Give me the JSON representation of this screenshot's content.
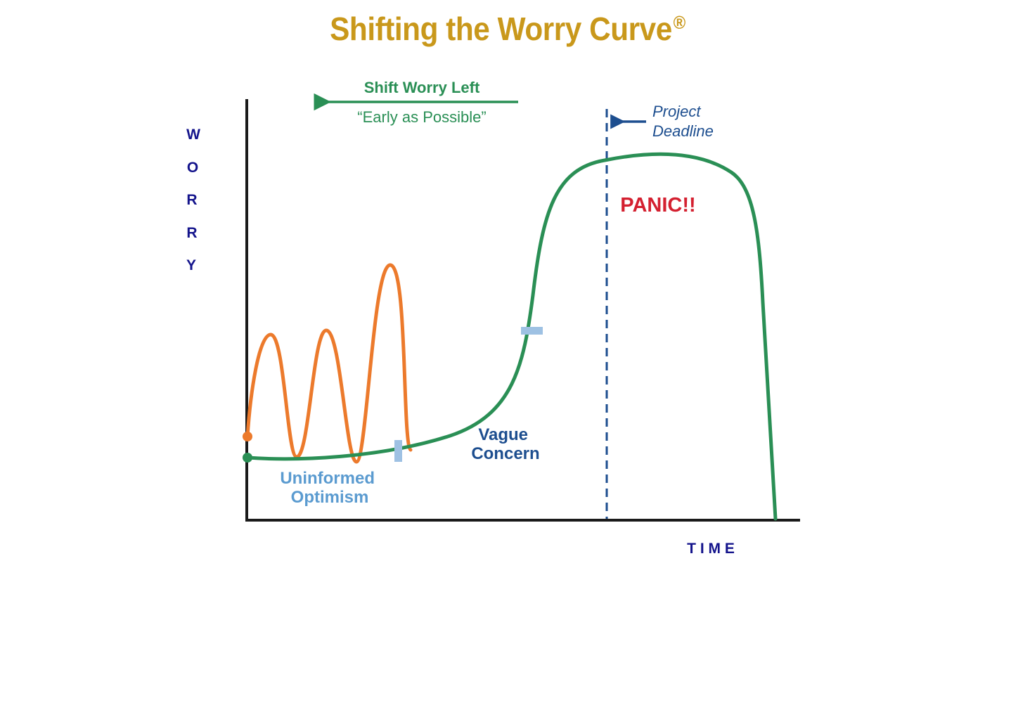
{
  "title": {
    "text": "Shifting the Worry Curve",
    "mark": "®",
    "color": "#c9981b"
  },
  "axes": {
    "y_label_letters": [
      "W",
      "O",
      "R",
      "R",
      "Y"
    ],
    "x_label": "T I M E",
    "label_color": "#14148c",
    "axis_color": "#1a1a1a"
  },
  "shift": {
    "title": "Shift Worry Left",
    "subtitle": "“Early as Possible”",
    "color": "#2a8f55"
  },
  "deadline": {
    "line1": "Project",
    "line2": "Deadline",
    "color": "#1d4e8f"
  },
  "labels": {
    "panic": "PANIC!!",
    "panic_color": "#d42030",
    "vague_line1": "Vague",
    "vague_line2": "Concern",
    "vague_color": "#1d4e8f",
    "uninformed_line1": "Uninformed",
    "uninformed_line2": "Optimism",
    "uninformed_color": "#5b9bd0"
  },
  "curves": {
    "shifted_color": "#2a8f55",
    "original_color": "#ec7a2c",
    "marker_color": "#9ec1e3"
  }
}
